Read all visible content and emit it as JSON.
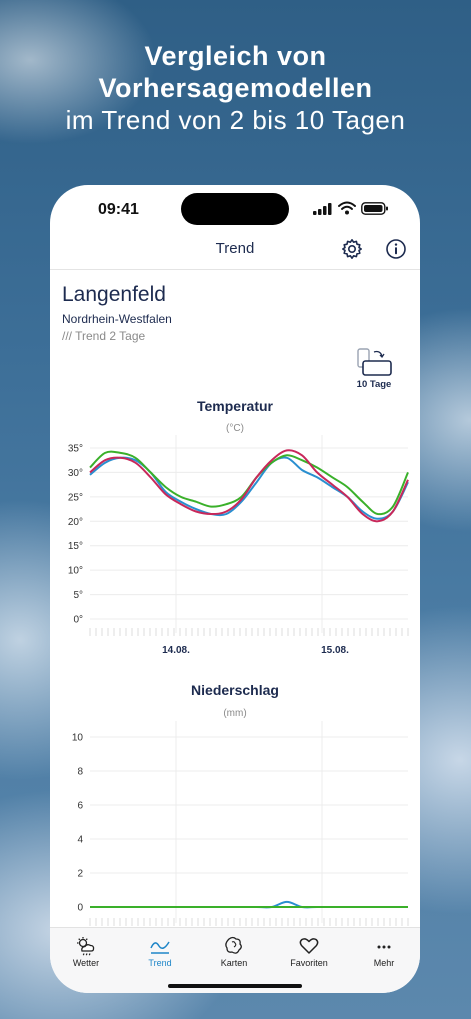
{
  "headline": {
    "line1": "Vergleich von",
    "line2": "Vorhersagemodellen",
    "line3": "im Trend von 2 bis 10 Tagen"
  },
  "status": {
    "time": "09:41"
  },
  "nav": {
    "title": "Trend",
    "settings_icon": "gear-icon",
    "info_icon": "info-icon"
  },
  "location": {
    "name": "Langenfeld",
    "region": "Nordrhein-Westfalen",
    "trend_label": "/// Trend 2 Tage",
    "range_button_label": "10 Tage"
  },
  "colors": {
    "accent": "#1f86c8",
    "navy": "#1d2b4f",
    "blue": "#2a8fd0",
    "green": "#3ab02a",
    "red": "#c8285a"
  },
  "charts": {
    "temperature": {
      "title": "Temperatur",
      "unit": "(°C)",
      "date_labels": [
        "14.08.",
        "15.08."
      ]
    },
    "precipitation": {
      "title": "Niederschlag",
      "unit": "(mm)"
    }
  },
  "chart_data": [
    {
      "type": "line",
      "title": "Temperatur",
      "ylabel": "(°C)",
      "ylim": [
        0,
        35
      ],
      "yticks": [
        "35°",
        "30°",
        "25°",
        "20°",
        "15°",
        "10°",
        "5°",
        "0°"
      ],
      "xticks": [
        "14.08.",
        "15.08."
      ],
      "grid": true,
      "series": [
        {
          "color": "#2a8fd0",
          "values": [
            29.5,
            32,
            33,
            32.5,
            30,
            26,
            24,
            22.5,
            21.5,
            21.5,
            24,
            28,
            32,
            33,
            30.5,
            29,
            27,
            25,
            22,
            20.5,
            22,
            28
          ]
        },
        {
          "color": "#3ab02a",
          "values": [
            31,
            34,
            34,
            33,
            30,
            27,
            25,
            24,
            23,
            23.5,
            25,
            29,
            32,
            33.5,
            32.5,
            31,
            29,
            27,
            24,
            21.5,
            23,
            30
          ]
        },
        {
          "color": "#c8285a",
          "values": [
            30,
            32.5,
            33,
            32,
            29,
            25.5,
            23.5,
            22,
            21.5,
            22,
            24.5,
            29,
            32.5,
            34.5,
            33.5,
            30,
            27.5,
            25,
            21.5,
            20,
            22,
            28.5
          ]
        }
      ]
    },
    {
      "type": "line",
      "title": "Niederschlag",
      "ylabel": "(mm)",
      "ylim": [
        0,
        10
      ],
      "yticks": [
        "10",
        "8",
        "6",
        "4",
        "2",
        "0"
      ],
      "grid": true,
      "series": [
        {
          "color": "#2a8fd0",
          "values": [
            0,
            0,
            0,
            0,
            0,
            0,
            0,
            0,
            0,
            0,
            0,
            0,
            0,
            0.3,
            0,
            0,
            0,
            0,
            0,
            0,
            0,
            0
          ]
        },
        {
          "color": "#3ab02a",
          "values": [
            0,
            0,
            0,
            0,
            0,
            0,
            0,
            0,
            0,
            0,
            0,
            0,
            0,
            0,
            0,
            0,
            0,
            0,
            0,
            0,
            0,
            0
          ]
        }
      ]
    }
  ],
  "tabbar": {
    "items": [
      {
        "label": "Wetter",
        "icon": "weather-icon"
      },
      {
        "label": "Trend",
        "icon": "trend-icon",
        "active": true
      },
      {
        "label": "Karten",
        "icon": "map-icon"
      },
      {
        "label": "Favoriten",
        "icon": "heart-icon"
      },
      {
        "label": "Mehr",
        "icon": "more-icon"
      }
    ]
  }
}
